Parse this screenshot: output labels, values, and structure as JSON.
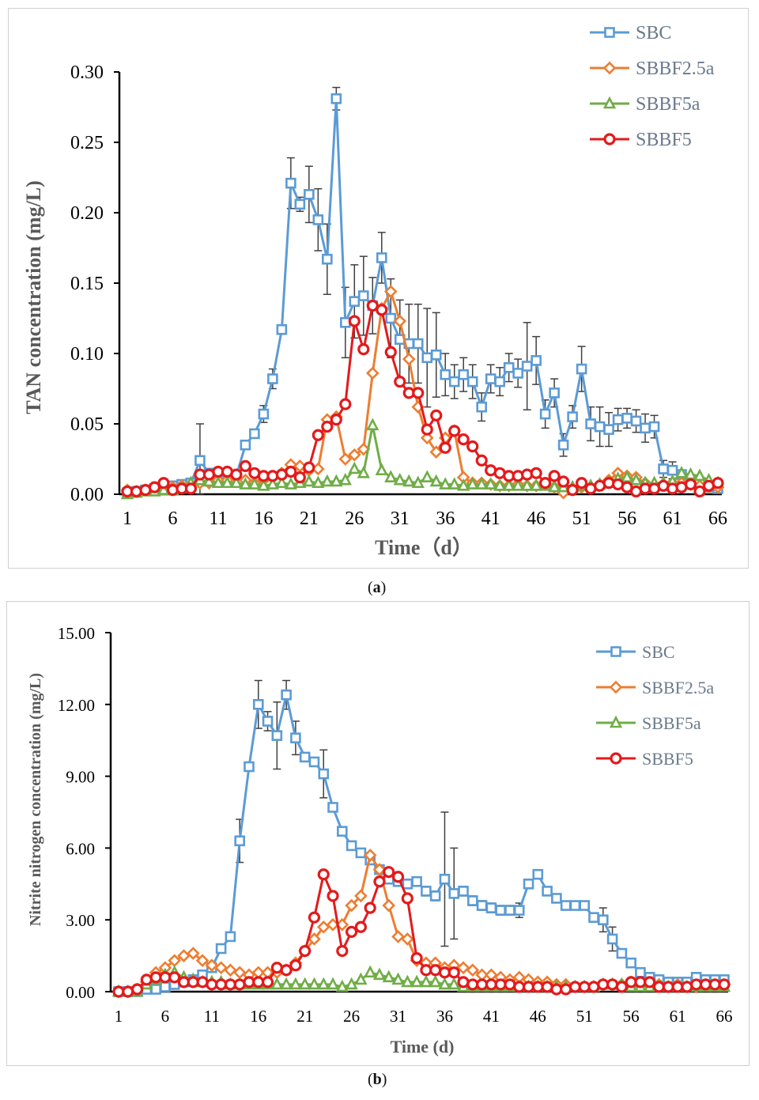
{
  "chart_data": [
    {
      "id": "a",
      "type": "line",
      "caption": "a",
      "xlabel": "Time（d）",
      "ylabel": "TAN concentration (mg/L)",
      "ylim": [
        0,
        0.3
      ],
      "yticks": [
        "0.00",
        "0.05",
        "0.10",
        "0.15",
        "0.20",
        "0.25",
        "0.30"
      ],
      "ytick_values": [
        0,
        0.05,
        0.1,
        0.15,
        0.2,
        0.25,
        0.3
      ],
      "xlim": [
        1,
        66
      ],
      "xticks": [
        "1",
        "6",
        "11",
        "16",
        "21",
        "26",
        "31",
        "36",
        "41",
        "46",
        "51",
        "56",
        "61",
        "66"
      ],
      "xtick_values": [
        1,
        6,
        11,
        16,
        21,
        26,
        31,
        36,
        41,
        46,
        51,
        56,
        61,
        66
      ],
      "grid": false,
      "legend": "top-right",
      "series": [
        {
          "name": "SBC",
          "color": "#5b9bd5",
          "marker": "square",
          "values": [
            0.001,
            0.002,
            0.003,
            0.004,
            0.005,
            0.006,
            0.007,
            0.008,
            0.024,
            0.015,
            0.013,
            0.012,
            0.013,
            0.035,
            0.043,
            0.057,
            0.082,
            0.117,
            0.221,
            0.206,
            0.213,
            0.195,
            0.167,
            0.281,
            0.122,
            0.137,
            0.141,
            0.134,
            0.168,
            0.125,
            0.11,
            0.107,
            0.107,
            0.097,
            0.099,
            0.085,
            0.08,
            0.085,
            0.08,
            0.062,
            0.082,
            0.08,
            0.09,
            0.086,
            0.091,
            0.095,
            0.057,
            0.072,
            0.035,
            0.055,
            0.089,
            0.05,
            0.048,
            0.046,
            0.053,
            0.054,
            0.052,
            0.047,
            0.048,
            0.018,
            0.017,
            0.014,
            0.01,
            0.008,
            0.005,
            0.004
          ],
          "errors": [
            0,
            0,
            0,
            0,
            0,
            0,
            0,
            0,
            0.026,
            0,
            0,
            0,
            0,
            0,
            0,
            0.006,
            0.007,
            0,
            0.018,
            0.005,
            0.02,
            0.022,
            0.025,
            0.008,
            0.025,
            0.026,
            0.028,
            0.02,
            0.018,
            0.028,
            0.028,
            0.028,
            0.028,
            0.035,
            0.03,
            0.015,
            0.012,
            0.012,
            0.012,
            0.01,
            0.01,
            0.01,
            0.01,
            0.01,
            0.031,
            0.017,
            0.01,
            0.01,
            0.008,
            0.008,
            0.016,
            0.012,
            0.014,
            0.012,
            0.008,
            0.007,
            0.008,
            0.01,
            0.008,
            0.006,
            0.006,
            0.003,
            0.002,
            0.002,
            0.001,
            0.001
          ]
        },
        {
          "name": "SBBF2.5a",
          "color": "#ed7d31",
          "marker": "diamond",
          "values": [
            0.003,
            0.002,
            0.003,
            0.004,
            0.005,
            0.005,
            0.006,
            0.007,
            0.008,
            0.008,
            0.01,
            0.01,
            0.012,
            0.01,
            0.008,
            0.01,
            0.012,
            0.015,
            0.021,
            0.02,
            0.017,
            0.018,
            0.053,
            0.055,
            0.025,
            0.028,
            0.032,
            0.086,
            0.132,
            0.144,
            0.123,
            0.096,
            0.062,
            0.04,
            0.03,
            0.04,
            0.045,
            0.012,
            0.008,
            0.008,
            0.007,
            0.006,
            0.006,
            0.007,
            0.006,
            0.006,
            0.007,
            0.005,
            0.001,
            0.004,
            0.005,
            0.005,
            0.007,
            0.01,
            0.015,
            0.013,
            0.012,
            0.008,
            0.006,
            0.007,
            0.008,
            0.008,
            0.007,
            0.006,
            0.005,
            0.005
          ],
          "errors": []
        },
        {
          "name": "SBBF5a",
          "color": "#70ad47",
          "marker": "triangle",
          "values": [
            0.0,
            0.001,
            0.002,
            0.002,
            0.003,
            0.003,
            0.004,
            0.008,
            0.01,
            0.009,
            0.008,
            0.008,
            0.008,
            0.007,
            0.007,
            0.006,
            0.007,
            0.008,
            0.007,
            0.008,
            0.009,
            0.008,
            0.009,
            0.009,
            0.01,
            0.018,
            0.015,
            0.049,
            0.017,
            0.012,
            0.01,
            0.009,
            0.008,
            0.012,
            0.009,
            0.007,
            0.007,
            0.006,
            0.007,
            0.007,
            0.007,
            0.006,
            0.006,
            0.006,
            0.006,
            0.006,
            0.006,
            0.005,
            0.005,
            0.005,
            0.006,
            0.006,
            0.007,
            0.008,
            0.011,
            0.012,
            0.01,
            0.008,
            0.008,
            0.008,
            0.009,
            0.015,
            0.014,
            0.013,
            0.01,
            0.008
          ],
          "errors": []
        },
        {
          "name": "SBBF5",
          "color": "#e31a1c",
          "marker": "circle",
          "values": [
            0.002,
            0.002,
            0.003,
            0.005,
            0.008,
            0.003,
            0.004,
            0.004,
            0.014,
            0.014,
            0.016,
            0.016,
            0.014,
            0.02,
            0.015,
            0.013,
            0.013,
            0.014,
            0.016,
            0.012,
            0.019,
            0.042,
            0.048,
            0.053,
            0.064,
            0.123,
            0.103,
            0.134,
            0.131,
            0.101,
            0.08,
            0.072,
            0.072,
            0.046,
            0.056,
            0.033,
            0.045,
            0.039,
            0.034,
            0.024,
            0.017,
            0.015,
            0.013,
            0.013,
            0.014,
            0.015,
            0.008,
            0.013,
            0.009,
            0.003,
            0.008,
            0.004,
            0.006,
            0.008,
            0.007,
            0.005,
            0.002,
            0.004,
            0.004,
            0.006,
            0.004,
            0.005,
            0.007,
            0.002,
            0.006,
            0.008
          ],
          "errors": []
        }
      ]
    },
    {
      "id": "b",
      "type": "line",
      "caption": "b",
      "xlabel": "Time (d)",
      "ylabel": "Nitrite nitrogen concentration (mg/L)",
      "ylim": [
        0,
        15.0
      ],
      "yticks": [
        "0.00",
        "3.00",
        "6.00",
        "9.00",
        "12.00",
        "15.00"
      ],
      "ytick_values": [
        0,
        3,
        6,
        9,
        12,
        15
      ],
      "xlim": [
        1,
        66
      ],
      "xticks": [
        "1",
        "6",
        "11",
        "16",
        "21",
        "26",
        "31",
        "36",
        "41",
        "46",
        "51",
        "56",
        "61",
        "66"
      ],
      "xtick_values": [
        1,
        6,
        11,
        16,
        21,
        26,
        31,
        36,
        41,
        46,
        51,
        56,
        61,
        66
      ],
      "grid": false,
      "legend": "top-right",
      "series": [
        {
          "name": "SBC",
          "color": "#5b9bd5",
          "marker": "square",
          "values": [
            0.0,
            0.0,
            0.0,
            0.1,
            0.1,
            0.2,
            0.3,
            0.4,
            0.5,
            0.7,
            1.0,
            1.8,
            2.3,
            6.3,
            9.4,
            12.0,
            11.3,
            10.7,
            12.4,
            10.6,
            9.8,
            9.6,
            9.1,
            7.7,
            6.7,
            6.1,
            5.8,
            5.5,
            5.1,
            4.7,
            4.6,
            4.5,
            4.6,
            4.2,
            4.0,
            4.7,
            4.1,
            4.2,
            3.8,
            3.6,
            3.5,
            3.4,
            3.4,
            3.4,
            4.5,
            4.9,
            4.2,
            3.9,
            3.6,
            3.6,
            3.6,
            3.1,
            3.0,
            2.2,
            1.6,
            1.2,
            0.8,
            0.6,
            0.5,
            0.4,
            0.4,
            0.4,
            0.6,
            0.5,
            0.5,
            0.5
          ],
          "errors": [
            0,
            0,
            0,
            0,
            0,
            0,
            0,
            0,
            0,
            0,
            0,
            0,
            0,
            0.9,
            0,
            1.0,
            0.4,
            1.4,
            0.6,
            0.7,
            0,
            0,
            1.0,
            0,
            0,
            0,
            0,
            0,
            0,
            0,
            0,
            0,
            0,
            0.2,
            0.2,
            2.8,
            1.9,
            0.2,
            0.2,
            0.2,
            0.2,
            0.2,
            0.2,
            0.3,
            0,
            0,
            0,
            0,
            0,
            0,
            0,
            0,
            0.5,
            0.5,
            0,
            0,
            0,
            0,
            0,
            0,
            0,
            0,
            0.1,
            0,
            0,
            0
          ]
        },
        {
          "name": "SBBF2.5a",
          "color": "#ed7d31",
          "marker": "diamond",
          "values": [
            0.0,
            0.0,
            0.1,
            0.4,
            0.8,
            1.0,
            1.3,
            1.5,
            1.6,
            1.3,
            1.1,
            1.0,
            0.9,
            0.8,
            0.7,
            0.8,
            0.8,
            0.8,
            0.9,
            1.2,
            1.7,
            2.2,
            2.7,
            2.8,
            2.8,
            3.6,
            4.0,
            5.7,
            5.1,
            3.6,
            2.3,
            2.2,
            1.3,
            1.2,
            1.2,
            1.0,
            1.1,
            1.0,
            0.9,
            0.7,
            0.7,
            0.6,
            0.5,
            0.6,
            0.5,
            0.4,
            0.4,
            0.3,
            0.3,
            0.2,
            0.2,
            0.2,
            0.3,
            0.3,
            0.3,
            0.4,
            0.3,
            0.3,
            0.3,
            0.2,
            0.3,
            0.2,
            0.2,
            0.3,
            0.3,
            0.3
          ],
          "errors": []
        },
        {
          "name": "SBBF5a",
          "color": "#70ad47",
          "marker": "triangle",
          "values": [
            0.0,
            0.0,
            0.0,
            0.3,
            0.5,
            0.7,
            0.8,
            0.6,
            0.5,
            0.4,
            0.4,
            0.4,
            0.3,
            0.3,
            0.3,
            0.3,
            0.3,
            0.3,
            0.3,
            0.3,
            0.3,
            0.3,
            0.3,
            0.3,
            0.2,
            0.3,
            0.5,
            0.8,
            0.7,
            0.6,
            0.5,
            0.4,
            0.4,
            0.4,
            0.4,
            0.3,
            0.3,
            0.2,
            0.2,
            0.2,
            0.2,
            0.2,
            0.2,
            0.2,
            0.2,
            0.2,
            0.2,
            0.2,
            0.2,
            0.2,
            0.2,
            0.2,
            0.3,
            0.3,
            0.3,
            0.2,
            0.2,
            0.2,
            0.2,
            0.2,
            0.2,
            0.2,
            0.2,
            0.2,
            0.2,
            0.2
          ],
          "errors": []
        },
        {
          "name": "SBBF5",
          "color": "#e31a1c",
          "marker": "circle",
          "values": [
            0.0,
            0.0,
            0.1,
            0.5,
            0.6,
            0.6,
            0.6,
            0.4,
            0.4,
            0.4,
            0.3,
            0.3,
            0.3,
            0.3,
            0.4,
            0.4,
            0.4,
            1.0,
            0.9,
            1.1,
            1.7,
            3.1,
            4.9,
            4.0,
            1.7,
            2.5,
            2.7,
            3.5,
            4.6,
            5.0,
            4.8,
            3.9,
            1.4,
            0.9,
            0.9,
            0.8,
            0.8,
            0.4,
            0.3,
            0.3,
            0.3,
            0.3,
            0.3,
            0.2,
            0.2,
            0.2,
            0.2,
            0.1,
            0.1,
            0.2,
            0.2,
            0.2,
            0.3,
            0.3,
            0.2,
            0.4,
            0.4,
            0.4,
            0.2,
            0.2,
            0.2,
            0.2,
            0.3,
            0.3,
            0.3,
            0.3
          ],
          "errors": []
        }
      ]
    }
  ]
}
